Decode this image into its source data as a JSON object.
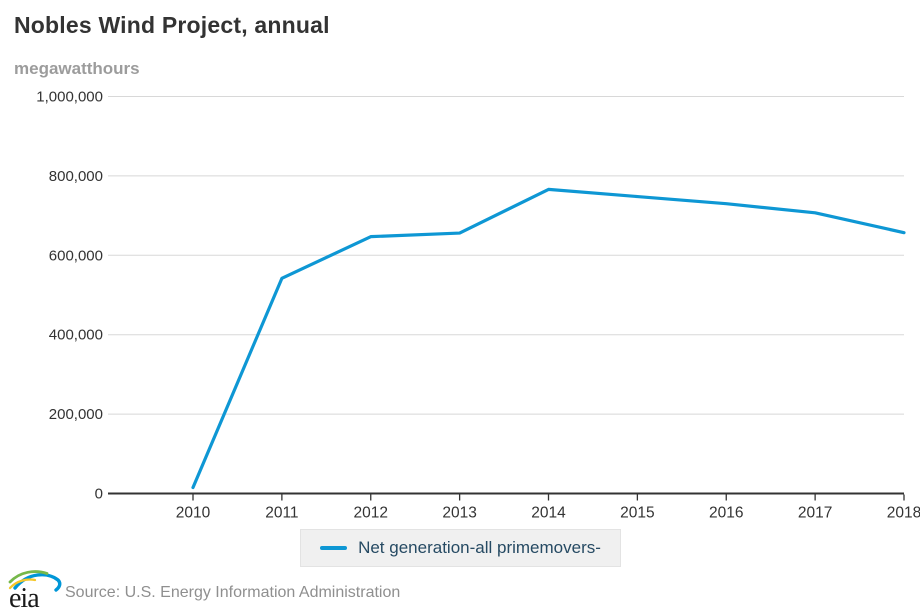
{
  "header": {
    "title": "Nobles Wind Project, annual",
    "units": "megawatthours"
  },
  "legend": {
    "series_label": "Net generation-all primemovers-"
  },
  "footer": {
    "logo_text": "eia",
    "source": "Source: U.S. Energy Information Administration"
  },
  "colors": {
    "line": "#0e97d4",
    "grid": "#d8d8d8",
    "axis": "#333333",
    "tick_label": "#333333",
    "title": "#333333",
    "units": "#9c9c9c",
    "legend_bg": "#f0f0f0",
    "legend_border": "#e3e3e3",
    "legend_text": "#264a63",
    "source_text": "#8f8f8f",
    "logo_green": "#76b84a",
    "logo_blue": "#0096d7",
    "logo_yellow": "#f5c72a"
  },
  "chart_data": {
    "type": "line",
    "title": "Nobles Wind Project, annual",
    "ylabel": "megawatthours",
    "xlabel": "",
    "categories": [
      "2010",
      "2011",
      "2012",
      "2013",
      "2014",
      "2015",
      "2016",
      "2017",
      "2018"
    ],
    "series": [
      {
        "name": "Net generation-all primemovers-",
        "values": [
          15000,
          542000,
          647000,
          656000,
          766000,
          748000,
          730000,
          707000,
          657000
        ]
      }
    ],
    "ylim": [
      0,
      1000000
    ],
    "ytick_interval": 200000,
    "grid": "horizontal-only",
    "legend_position": "bottom-center",
    "markers": "none"
  }
}
